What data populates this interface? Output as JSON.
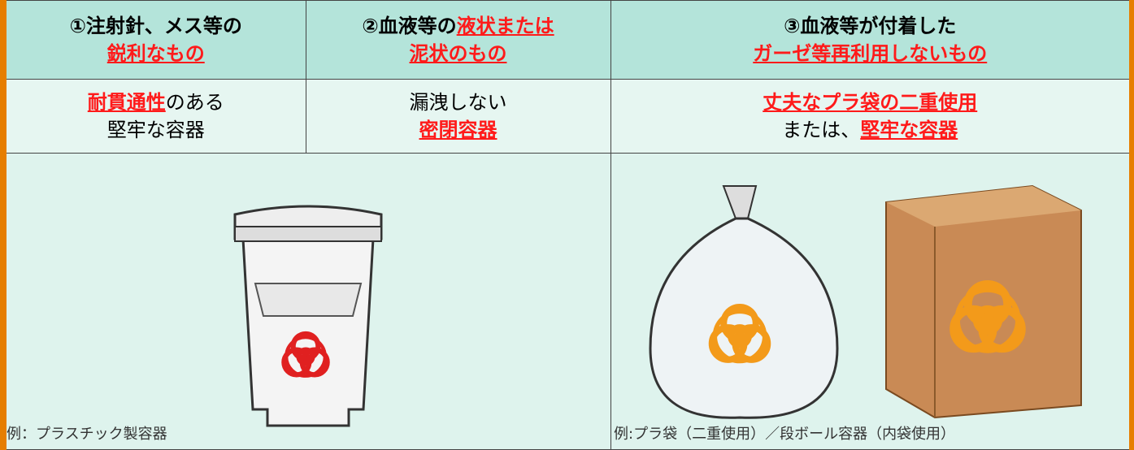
{
  "table": {
    "header": [
      {
        "lines": [
          [
            {
              "text": "①注射針、メス等の",
              "highlight": false
            }
          ],
          [
            {
              "text": "鋭利なもの",
              "highlight": true
            }
          ]
        ]
      },
      {
        "lines": [
          [
            {
              "text": "②血液等の",
              "highlight": false
            },
            {
              "text": "液状または",
              "highlight": true
            }
          ],
          [
            {
              "text": "泥状のもの",
              "highlight": true
            }
          ]
        ]
      },
      {
        "lines": [
          [
            {
              "text": "③血液等が付着した",
              "highlight": false
            }
          ],
          [
            {
              "text": "ガーゼ等再利用しないもの",
              "highlight": true
            }
          ]
        ]
      }
    ],
    "requirements": [
      {
        "lines": [
          [
            {
              "text": "耐貫通性",
              "highlight": true
            },
            {
              "text": "のある",
              "highlight": false
            }
          ],
          [
            {
              "text": "堅牢な容器",
              "highlight": false
            }
          ]
        ]
      },
      {
        "lines": [
          [
            {
              "text": "漏洩しない",
              "highlight": false
            }
          ],
          [
            {
              "text": "密閉容器",
              "highlight": true
            }
          ]
        ]
      },
      {
        "lines": [
          [
            {
              "text": "丈夫なプラ袋の二重使用",
              "highlight": true
            }
          ],
          [
            {
              "text": "または、",
              "highlight": false
            },
            {
              "text": "堅牢な容器",
              "highlight": true
            }
          ]
        ]
      }
    ],
    "examples": [
      {
        "caption": "例：プラスチック製容器"
      },
      {
        "caption": "例:プラ袋（二重使用）／段ボール容器（内袋使用）"
      }
    ]
  }
}
